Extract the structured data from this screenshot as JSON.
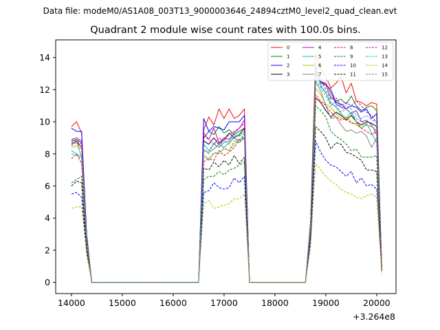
{
  "figure": {
    "suptitle": "Data file: modeM0/AS1A08_003T13_9000003646_24894cztM0_level2_quad_clean.evt"
  },
  "chart_data": {
    "type": "line",
    "title": "Quadrant 2 module wise count rates with 100.0s bins.",
    "xlabel": "",
    "ylabel": "",
    "x_offset_label": "+3.264e8",
    "xlim": [
      13690,
      20380
    ],
    "ylim": [
      -0.7,
      15.1
    ],
    "x_ticks": [
      14000,
      15000,
      16000,
      17000,
      18000,
      19000,
      20000
    ],
    "y_ticks": [
      0,
      2,
      4,
      6,
      8,
      10,
      12,
      14
    ],
    "x": [
      14000,
      14100,
      14200,
      14300,
      14400,
      16400,
      16500,
      16600,
      16700,
      16800,
      16900,
      17000,
      17100,
      17200,
      17300,
      17400,
      17500,
      17600,
      18600,
      18700,
      18800,
      18900,
      19000,
      19100,
      19200,
      19300,
      19400,
      19500,
      19600,
      19700,
      19800,
      19900,
      20000,
      20100
    ],
    "legend_position": "upper-right",
    "series": [
      {
        "name": "0",
        "color": "#ff0000",
        "dash": "solid",
        "values": [
          9.7,
          10.0,
          9.3,
          3.0,
          0,
          0,
          0,
          9.5,
          10.3,
          9.8,
          10.8,
          10.2,
          10.8,
          10.2,
          10.4,
          10.8,
          0,
          0,
          0,
          3.8,
          14.2,
          13.3,
          12.8,
          12.1,
          12.4,
          12.8,
          11.8,
          12.4,
          11.3,
          11.2,
          11.0,
          11.2,
          11.1,
          1.0
        ]
      },
      {
        "name": "1",
        "color": "#008000",
        "dash": "solid",
        "values": [
          8.8,
          8.9,
          8.7,
          2.7,
          0,
          0,
          0,
          9.0,
          9.4,
          9.2,
          9.7,
          9.3,
          9.5,
          9.2,
          9.4,
          9.6,
          0,
          0,
          0,
          3.5,
          13.2,
          12.4,
          12.3,
          11.5,
          11.3,
          11.4,
          11.1,
          11.6,
          11.0,
          10.7,
          10.9,
          11.0,
          10.7,
          0.9
        ]
      },
      {
        "name": "2",
        "color": "#0000ff",
        "dash": "solid",
        "values": [
          9.6,
          9.4,
          9.4,
          2.9,
          0,
          0,
          0,
          10.2,
          9.4,
          9.7,
          9.6,
          9.5,
          10.0,
          10.0,
          10.0,
          10.4,
          0,
          0,
          0,
          3.6,
          13.0,
          12.5,
          12.3,
          12.0,
          11.2,
          11.1,
          10.8,
          11.0,
          10.9,
          10.6,
          10.8,
          10.2,
          10.5,
          0.9
        ]
      },
      {
        "name": "3",
        "color": "#000000",
        "dash": "solid",
        "values": [
          8.6,
          8.8,
          8.4,
          2.6,
          0,
          0,
          0,
          8.8,
          8.6,
          9.0,
          8.6,
          8.9,
          9.3,
          9.0,
          9.2,
          9.6,
          0,
          0,
          0,
          3.3,
          11.5,
          11.2,
          10.7,
          10.3,
          10.6,
          10.4,
          10.1,
          10.4,
          10.0,
          9.8,
          10.0,
          9.9,
          9.7,
          0.8
        ]
      },
      {
        "name": "4",
        "color": "#bf00bf",
        "dash": "solid",
        "values": [
          8.9,
          9.0,
          8.8,
          2.7,
          0,
          0,
          0,
          9.3,
          8.9,
          9.6,
          8.7,
          9.0,
          8.9,
          9.3,
          9.6,
          10.1,
          0,
          0,
          0,
          3.5,
          13.1,
          12.5,
          12.4,
          11.8,
          11.1,
          10.9,
          10.8,
          10.5,
          10.7,
          10.0,
          10.1,
          9.8,
          9.2,
          0.8
        ]
      },
      {
        "name": "5",
        "color": "#00bfbf",
        "dash": "solid",
        "values": [
          8.2,
          8.0,
          7.8,
          2.4,
          0,
          0,
          0,
          8.6,
          8.2,
          8.6,
          8.4,
          8.7,
          8.8,
          9.2,
          9.1,
          9.4,
          0,
          0,
          0,
          3.3,
          13.5,
          12.2,
          11.8,
          11.2,
          10.9,
          10.5,
          10.2,
          10.6,
          10.0,
          9.6,
          9.9,
          9.3,
          8.7,
          0.8
        ]
      },
      {
        "name": "6",
        "color": "#bfbf00",
        "dash": "solid",
        "values": [
          8.4,
          8.5,
          8.3,
          2.6,
          0,
          0,
          0,
          7.9,
          7.7,
          8.0,
          8.1,
          8.3,
          8.2,
          8.6,
          8.9,
          9.0,
          0,
          0,
          0,
          3.2,
          12.1,
          11.7,
          11.1,
          10.9,
          10.5,
          10.2,
          10.3,
          10.0,
          9.8,
          9.6,
          9.8,
          9.7,
          9.4,
          0.8
        ]
      },
      {
        "name": "7",
        "color": "#808080",
        "dash": "solid",
        "values": [
          8.9,
          8.8,
          7.8,
          2.5,
          0,
          0,
          0,
          8.2,
          8.1,
          8.3,
          8.6,
          8.4,
          8.7,
          9.0,
          8.7,
          9.0,
          0,
          0,
          0,
          3.3,
          12.5,
          11.9,
          11.0,
          10.2,
          10.3,
          9.8,
          9.4,
          9.5,
          9.3,
          9.4,
          9.1,
          8.4,
          9.0,
          0.8
        ]
      },
      {
        "name": "8",
        "color": "#ff0000",
        "dash": "dashed",
        "values": [
          7.7,
          8.0,
          7.4,
          2.4,
          0,
          0,
          0,
          7.5,
          7.7,
          7.6,
          8.2,
          7.9,
          8.1,
          8.4,
          8.9,
          9.0,
          0,
          0,
          0,
          3.1,
          11.7,
          11.3,
          11.0,
          10.6,
          10.3,
          10.1,
          10.2,
          9.9,
          9.9,
          9.6,
          9.4,
          9.2,
          9.4,
          0.8
        ]
      },
      {
        "name": "9",
        "color": "#008000",
        "dash": "dashed",
        "values": [
          6.2,
          6.4,
          6.6,
          2.1,
          0,
          0,
          0,
          6.4,
          6.6,
          6.6,
          6.9,
          6.7,
          7.0,
          7.1,
          7.3,
          7.5,
          0,
          0,
          0,
          2.8,
          11.0,
          10.7,
          10.3,
          9.4,
          9.1,
          8.9,
          8.6,
          8.2,
          8.3,
          7.8,
          7.8,
          7.8,
          7.9,
          0.7
        ]
      },
      {
        "name": "10",
        "color": "#0000ff",
        "dash": "dashed",
        "values": [
          5.5,
          5.6,
          5.3,
          1.9,
          0,
          0,
          0,
          5.6,
          5.7,
          6.2,
          5.9,
          5.8,
          5.9,
          6.5,
          6.2,
          6.6,
          0,
          0,
          0,
          2.5,
          8.8,
          8.1,
          7.6,
          7.3,
          7.2,
          6.9,
          6.6,
          6.9,
          6.2,
          6.5,
          6.0,
          6.1,
          5.8,
          0.6
        ]
      },
      {
        "name": "11",
        "color": "#000000",
        "dash": "dashed",
        "values": [
          6.0,
          6.3,
          6.2,
          2.0,
          0,
          0,
          0,
          7.1,
          7.0,
          7.5,
          7.2,
          7.6,
          7.3,
          7.9,
          7.4,
          7.8,
          0,
          0,
          0,
          2.9,
          9.7,
          9.4,
          9.0,
          8.3,
          8.7,
          8.6,
          8.1,
          8.0,
          7.8,
          7.6,
          7.0,
          7.0,
          6.9,
          0.7
        ]
      },
      {
        "name": "12",
        "color": "#bf00bf",
        "dash": "dashed",
        "values": [
          8.7,
          8.9,
          8.6,
          2.6,
          0,
          0,
          0,
          9.1,
          8.9,
          8.6,
          9.0,
          8.8,
          9.2,
          9.4,
          9.6,
          9.9,
          0,
          0,
          0,
          3.5,
          13.6,
          12.6,
          12.0,
          11.4,
          11.5,
          11.0,
          11.2,
          11.0,
          11.3,
          11.0,
          10.6,
          10.4,
          9.9,
          0.8
        ]
      },
      {
        "name": "13",
        "color": "#00bfbf",
        "dash": "dashed",
        "values": [
          8.0,
          7.9,
          7.7,
          2.4,
          0,
          0,
          0,
          7.9,
          7.6,
          8.1,
          8.0,
          8.4,
          8.2,
          8.8,
          8.7,
          9.2,
          0,
          0,
          0,
          3.3,
          12.6,
          12.1,
          11.6,
          11.0,
          11.3,
          10.9,
          11.0,
          10.8,
          10.4,
          10.2,
          10.4,
          10.1,
          10.0,
          0.8
        ]
      },
      {
        "name": "14",
        "color": "#bfbf00",
        "dash": "dashed",
        "values": [
          4.6,
          4.7,
          4.7,
          1.7,
          0,
          0,
          0,
          4.9,
          5.1,
          4.6,
          4.7,
          4.8,
          4.9,
          5.2,
          5.2,
          5.5,
          0,
          0,
          0,
          2.2,
          7.4,
          7.0,
          6.6,
          6.3,
          6.1,
          5.8,
          5.6,
          5.5,
          5.3,
          5.2,
          5.4,
          5.5,
          5.3,
          0.5
        ]
      },
      {
        "name": "15",
        "color": "#808080",
        "dash": "dashed",
        "values": [
          8.5,
          8.7,
          8.4,
          2.6,
          0,
          0,
          0,
          8.3,
          8.0,
          8.7,
          8.4,
          8.9,
          8.6,
          9.1,
          8.8,
          9.3,
          0,
          0,
          0,
          3.4,
          12.9,
          12.3,
          11.8,
          11.1,
          11.0,
          10.6,
          10.8,
          10.5,
          10.2,
          10.0,
          9.8,
          9.7,
          9.5,
          0.8
        ]
      }
    ]
  }
}
